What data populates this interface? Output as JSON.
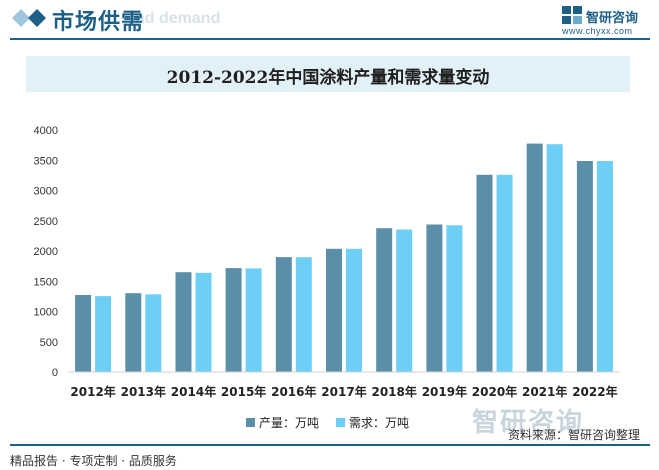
{
  "header": {
    "section_title": "市场供需",
    "section_subtitle": "nd demand",
    "logo_name": "智研咨询",
    "logo_url": "www.chyxx.com"
  },
  "chart_data": {
    "type": "bar",
    "title": "2012-2022年中国涂料产量和需求量变动",
    "categories": [
      "2012年",
      "2013年",
      "2014年",
      "2015年",
      "2016年",
      "2017年",
      "2018年",
      "2019年",
      "2020年",
      "2021年",
      "2022年"
    ],
    "series": [
      {
        "name": "产量：万吨",
        "color": "#5b8fa9",
        "values": [
          1272,
          1303,
          1649,
          1718,
          1899,
          2036,
          2377,
          2438,
          3259,
          3775,
          3488
        ]
      },
      {
        "name": "需求：万吨",
        "color": "#6dcff6",
        "values": [
          1255,
          1285,
          1640,
          1712,
          1898,
          2036,
          2355,
          2425,
          3259,
          3765,
          3488
        ]
      }
    ],
    "y_ticks": [
      "0",
      "500",
      "1000",
      "1500",
      "2000",
      "2500",
      "3000",
      "3500",
      "4000"
    ],
    "ylim": [
      0,
      4000
    ],
    "grid": false,
    "legend_position": "bottom"
  },
  "watermark": "智研咨询",
  "source": "资料来源：智研咨询整理",
  "footer": "精品报告 · 专项定制 · 品质服务"
}
